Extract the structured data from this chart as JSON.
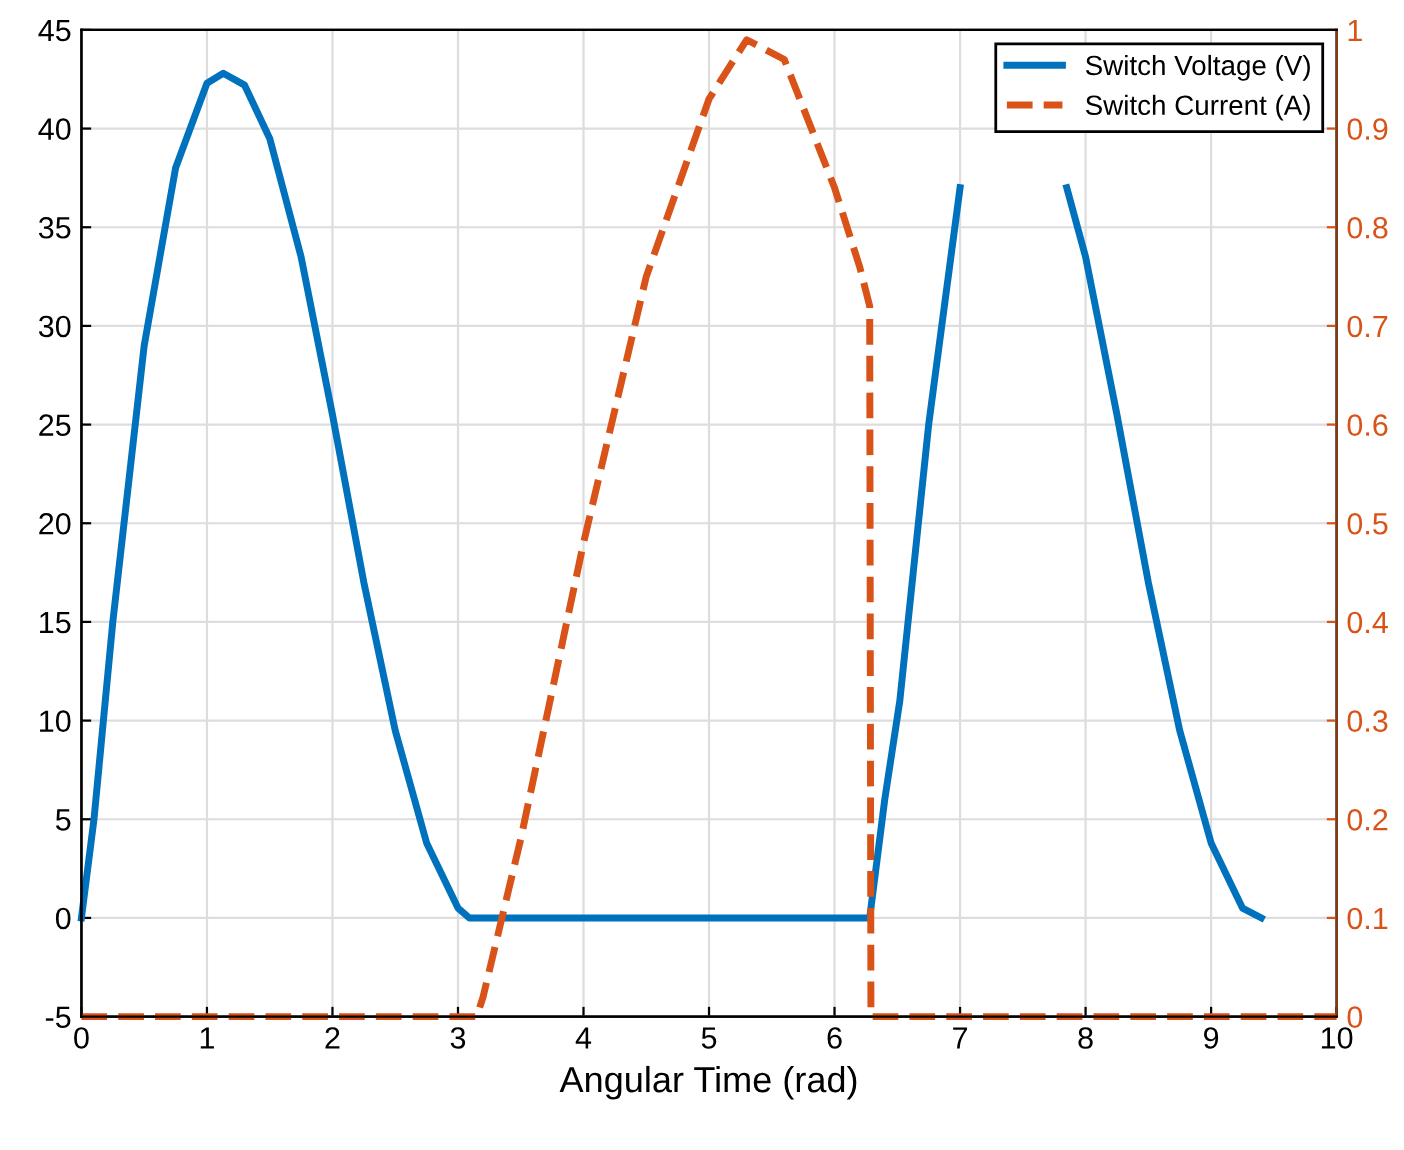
{
  "chart_data": {
    "type": "line",
    "xlabel": "Angular Time (rad)",
    "xlim": [
      0,
      10
    ],
    "xticks": [
      0,
      1,
      2,
      3,
      4,
      5,
      6,
      7,
      8,
      9,
      10
    ],
    "ylim": [
      -5,
      45
    ],
    "yticks": [
      -5,
      0,
      5,
      10,
      15,
      20,
      25,
      30,
      35,
      40,
      45
    ],
    "y2lim": [
      0,
      1
    ],
    "y2ticks": [
      0,
      0.1,
      0.2,
      0.3,
      0.4,
      0.5,
      0.6,
      0.7,
      0.8,
      0.9,
      1
    ],
    "grid": true,
    "legend": "top right",
    "series": [
      {
        "name": "Switch Voltage (V)",
        "color": "#0072bd",
        "axis": "y",
        "line_style": "solid",
        "x": [
          0,
          0.1,
          0.25,
          0.5,
          0.75,
          1.0,
          1.13,
          1.3,
          1.5,
          1.75,
          2.0,
          2.25,
          2.5,
          2.75,
          3.0,
          3.09,
          6.28,
          6.4,
          6.52,
          6.75,
          7.0,
          7.4,
          7.85,
          8.0,
          8.25,
          8.5,
          8.75,
          9.0,
          9.25,
          9.4
        ],
        "values": [
          0,
          5,
          15,
          29,
          38,
          42.3,
          42.8,
          42.2,
          39.5,
          33.5,
          25.5,
          17,
          9.5,
          3.8,
          0.5,
          0,
          0,
          6,
          11,
          25,
          37,
          null,
          37,
          33.5,
          25.5,
          17,
          9.5,
          3.8,
          0.5,
          0
        ]
      },
      {
        "name": "Switch Current (A)",
        "color": "#d95319",
        "axis": "y2",
        "line_style": "dashed",
        "x": [
          0,
          3.15,
          3.2,
          3.5,
          4.0,
          4.5,
          5.0,
          5.3,
          5.6,
          6.0,
          6.2,
          6.28,
          6.29,
          10
        ],
        "values": [
          0,
          0,
          0.02,
          0.18,
          0.48,
          0.75,
          0.93,
          0.99,
          0.97,
          0.84,
          0.76,
          0.72,
          0,
          0
        ]
      }
    ]
  }
}
